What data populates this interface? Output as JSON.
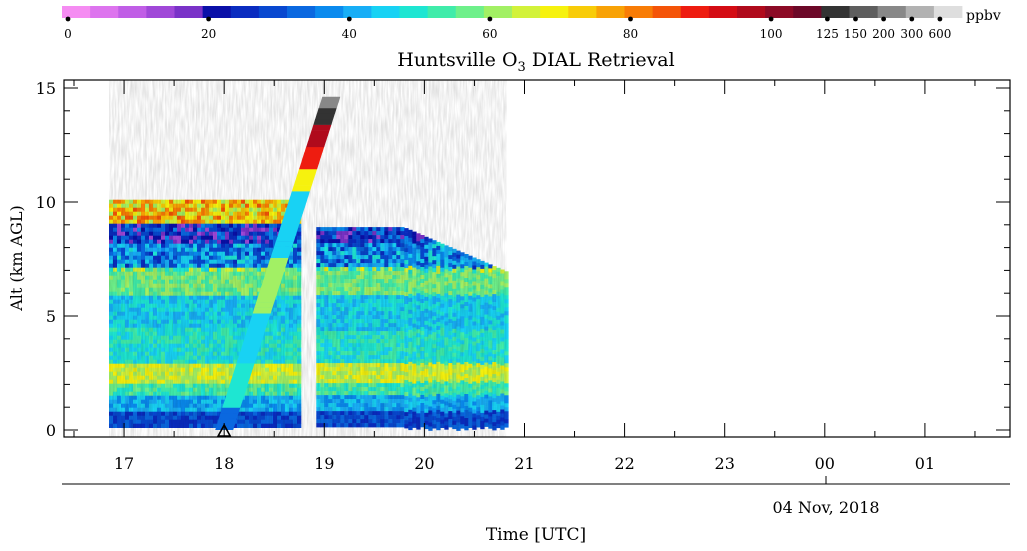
{
  "chart_data": {
    "type": "heatmap",
    "title": "Huntsville O",
    "title_subscript": "3",
    "title_suffix": " DIAL Retrieval",
    "ylabel": "Alt (km AGL)",
    "xlabel": "Time [UTC]",
    "date_label": "04 Nov, 2018",
    "x_ticks": [
      "17",
      "18",
      "19",
      "20",
      "21",
      "22",
      "23",
      "00",
      "01"
    ],
    "y_ticks": [
      "0",
      "5",
      "10",
      "15"
    ],
    "ylim": [
      0,
      15
    ],
    "xlim_hours": [
      16.4,
      25.85
    ],
    "colorbar": {
      "unit": "ppbv",
      "tick_labels": [
        "0",
        "20",
        "40",
        "60",
        "80",
        "100",
        "125",
        "150",
        "200",
        "300",
        "600"
      ],
      "colors": [
        "#f58cf2",
        "#dd74ee",
        "#c05ee6",
        "#a048d8",
        "#7a32c8",
        "#0a10a8",
        "#0a2cc0",
        "#0848d0",
        "#0a68e0",
        "#0a8aee",
        "#18aef6",
        "#18d2f4",
        "#1ee6d2",
        "#40ecaa",
        "#6ef08a",
        "#a2f064",
        "#d2f23a",
        "#f6f20e",
        "#f8cc08",
        "#f8a206",
        "#f87c06",
        "#f45408",
        "#ee1c10",
        "#d40c14",
        "#b00a1c",
        "#8c0a26",
        "#6c0828",
        "#333333",
        "#5e5e5e",
        "#888888",
        "#b2b2b2",
        "#dedede"
      ]
    },
    "lidar_coverage": {
      "segments": [
        {
          "start": 16.85,
          "end": 18.75,
          "top_km": 10.1
        },
        {
          "start": 18.92,
          "end": 20.82,
          "top_km": 8.9
        }
      ],
      "bottom_km": 0.15
    },
    "ozonesonde": {
      "marker": "triangle",
      "launch_time": 18.0,
      "end_time": 19.07,
      "end_alt_km": 14.6
    }
  }
}
